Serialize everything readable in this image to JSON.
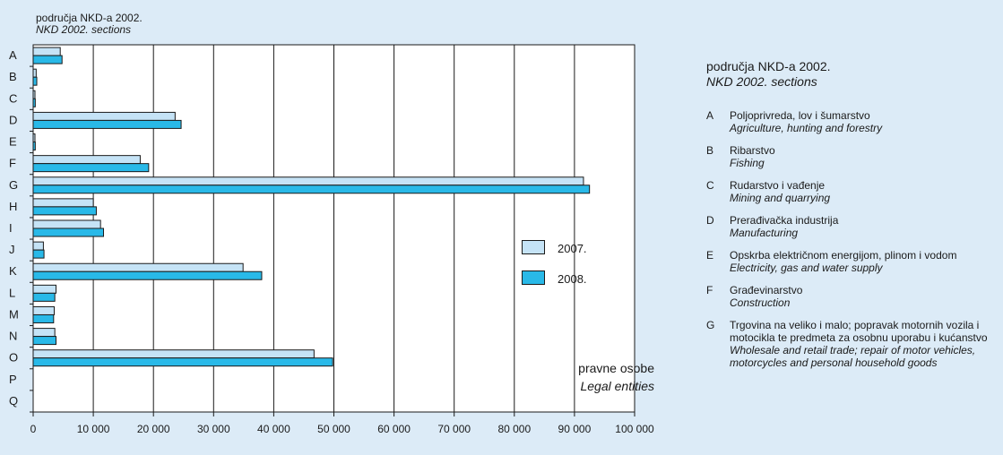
{
  "header": {
    "line1": "područja NKD-a 2002.",
    "line2": "NKD 2002. sections"
  },
  "unit": {
    "line1": "pravne osobe",
    "line2": "Legal entities"
  },
  "side_panel": {
    "title_line1": "područja NKD-a 2002.",
    "title_line2": "NKD 2002. sections",
    "sections": [
      {
        "code": "A",
        "hr": "Poljoprivreda, lov i šumarstvo",
        "en": "Agriculture, hunting and forestry"
      },
      {
        "code": "B",
        "hr": "Ribarstvo",
        "en": "Fishing"
      },
      {
        "code": "C",
        "hr": "Rudarstvo i vađenje",
        "en": "Mining and quarrying"
      },
      {
        "code": "D",
        "hr": "Prerađivačka industrija",
        "en": "Manufacturing"
      },
      {
        "code": "E",
        "hr": "Opskrba električnom energijom, plinom i vodom",
        "en": "Electricity, gas and water supply"
      },
      {
        "code": "F",
        "hr": "Građevinarstvo",
        "en": "Construction"
      },
      {
        "code": "G",
        "hr": "Trgovina na veliko i malo; popravak motornih vozila i motocikla te predmeta za osobnu uporabu i kućanstvo",
        "en": "Wholesale and retail trade; repair of motor vehicles, motorcycles and personal household goods"
      }
    ]
  },
  "colors": {
    "background": "#dcebf7",
    "plot_background": "#ffffff",
    "series_2007": "#c5e3f6",
    "series_2008": "#29b9e8",
    "grid": "#1a1a1a"
  },
  "chart_data": {
    "type": "bar",
    "orientation": "horizontal",
    "categories": [
      "A",
      "B",
      "C",
      "D",
      "E",
      "F",
      "G",
      "H",
      "I",
      "J",
      "K",
      "L",
      "M",
      "N",
      "O",
      "P",
      "Q"
    ],
    "series": [
      {
        "name": "2007.",
        "values": [
          4500,
          500,
          300,
          23600,
          300,
          17800,
          91500,
          10000,
          11200,
          1700,
          34900,
          3800,
          3500,
          3600,
          46700,
          0,
          0
        ]
      },
      {
        "name": "2008.",
        "values": [
          4800,
          600,
          350,
          24600,
          350,
          19200,
          92500,
          10500,
          11700,
          1800,
          38000,
          3600,
          3400,
          3800,
          49800,
          0,
          0
        ]
      }
    ],
    "xlim": [
      0,
      100000
    ],
    "xticks": [
      0,
      10000,
      20000,
      30000,
      40000,
      50000,
      60000,
      70000,
      80000,
      90000,
      100000
    ],
    "xtick_labels": [
      "0",
      "10 000",
      "20 000",
      "30 000",
      "40 000",
      "50 000",
      "60 000",
      "70 000",
      "80 000",
      "90 000",
      "100 000"
    ],
    "grid": true,
    "legend_position": "right"
  }
}
